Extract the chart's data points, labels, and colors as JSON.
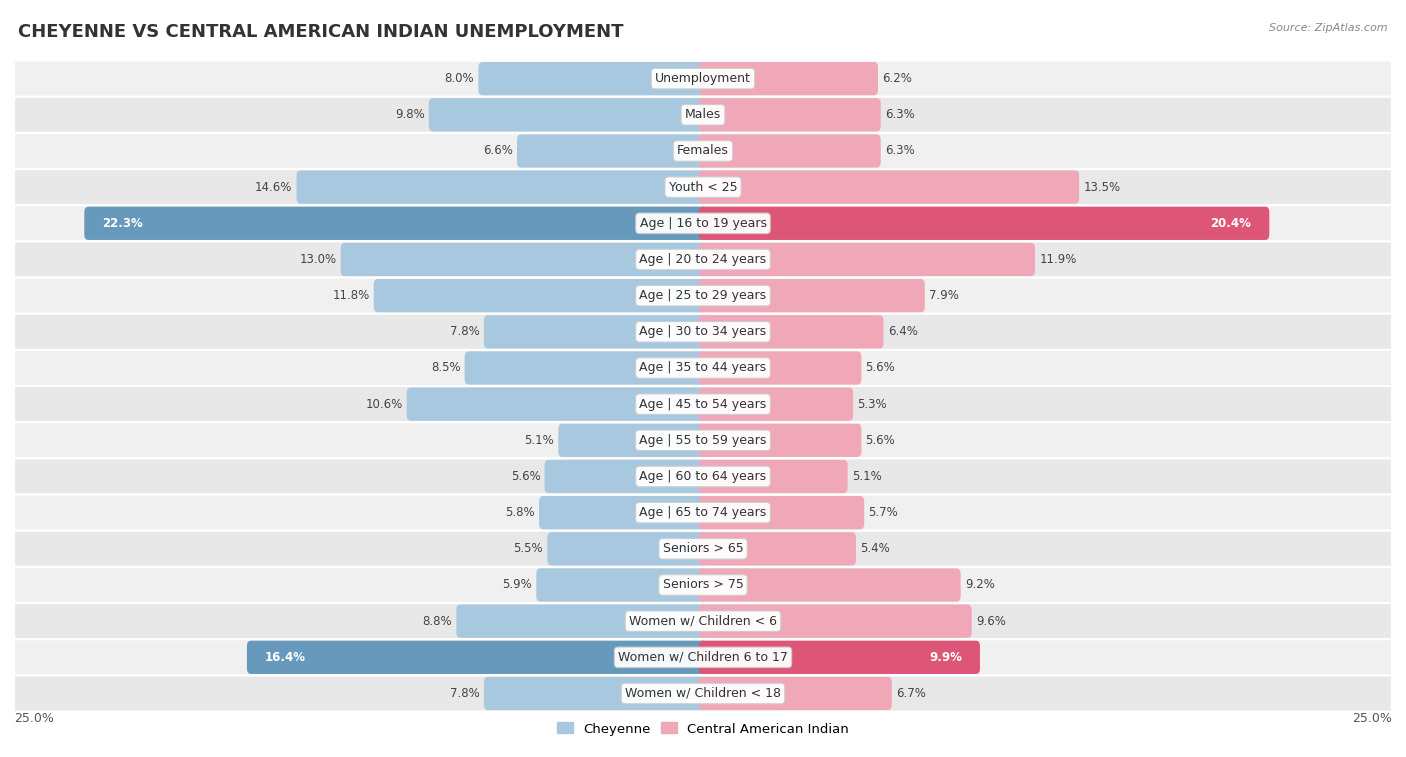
{
  "title": "CHEYENNE VS CENTRAL AMERICAN INDIAN UNEMPLOYMENT",
  "source": "Source: ZipAtlas.com",
  "categories": [
    "Unemployment",
    "Males",
    "Females",
    "Youth < 25",
    "Age | 16 to 19 years",
    "Age | 20 to 24 years",
    "Age | 25 to 29 years",
    "Age | 30 to 34 years",
    "Age | 35 to 44 years",
    "Age | 45 to 54 years",
    "Age | 55 to 59 years",
    "Age | 60 to 64 years",
    "Age | 65 to 74 years",
    "Seniors > 65",
    "Seniors > 75",
    "Women w/ Children < 6",
    "Women w/ Children 6 to 17",
    "Women w/ Children < 18"
  ],
  "cheyenne": [
    8.0,
    9.8,
    6.6,
    14.6,
    22.3,
    13.0,
    11.8,
    7.8,
    8.5,
    10.6,
    5.1,
    5.6,
    5.8,
    5.5,
    5.9,
    8.8,
    16.4,
    7.8
  ],
  "central_american_indian": [
    6.2,
    6.3,
    6.3,
    13.5,
    20.4,
    11.9,
    7.9,
    6.4,
    5.6,
    5.3,
    5.6,
    5.1,
    5.7,
    5.4,
    9.2,
    9.6,
    9.9,
    6.7
  ],
  "cheyenne_color": "#a8c8e0",
  "cheyenne_highlight_color": "#6699bb",
  "central_color": "#f0a8b8",
  "central_highlight_color": "#dd5577",
  "highlight_rows": [
    4,
    16
  ],
  "x_max": 25.0,
  "legend_cheyenne": "Cheyenne",
  "legend_central": "Central American Indian",
  "background_color": "#ffffff",
  "row_colors": [
    "#f0f0f0",
    "#e8e8e8"
  ],
  "bar_height": 0.62,
  "title_fontsize": 13,
  "value_fontsize": 8.5,
  "category_fontsize": 9.0
}
